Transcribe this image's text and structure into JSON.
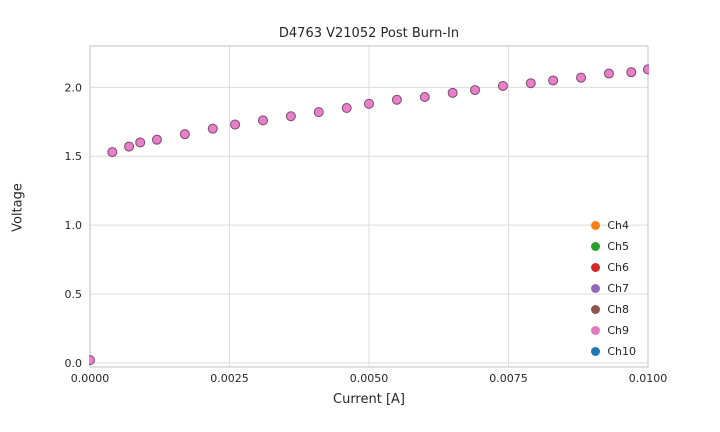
{
  "chart_data": {
    "type": "scatter",
    "title": "D4763 V21052 Post Burn-In",
    "xlabel": "Current [A]",
    "ylabel": "Voltage",
    "xlim": [
      0,
      0.01
    ],
    "ylim": [
      -0.03,
      2.3
    ],
    "grid": true,
    "legend_position": "lower right",
    "x_ticks": [
      0,
      0.0025,
      0.005,
      0.0075,
      0.01
    ],
    "x_tick_labels": [
      "0.0000",
      "0.0025",
      "0.0050",
      "0.0075",
      "0.0100"
    ],
    "y_ticks": [
      0.0,
      0.5,
      1.0,
      1.5,
      2.0
    ],
    "y_tick_labels": [
      "0.0",
      "0.5",
      "1.0",
      "1.5",
      "2.0"
    ],
    "marker": {
      "fill": "#e87fc9",
      "stroke": "#7a4a6e",
      "radius": 4.5,
      "stroke_width": 1
    },
    "points": {
      "x": [
        0.0,
        0.0004,
        0.0007,
        0.0009,
        0.0012,
        0.0017,
        0.0022,
        0.0026,
        0.0031,
        0.0036,
        0.0041,
        0.0046,
        0.005,
        0.0055,
        0.006,
        0.0065,
        0.0069,
        0.0074,
        0.0079,
        0.0083,
        0.0088,
        0.0093,
        0.0097,
        0.01
      ],
      "y": [
        0.02,
        1.53,
        1.57,
        1.6,
        1.62,
        1.66,
        1.7,
        1.73,
        1.76,
        1.79,
        1.82,
        1.85,
        1.88,
        1.91,
        1.93,
        1.96,
        1.98,
        2.01,
        2.03,
        2.05,
        2.07,
        2.1,
        2.11,
        2.13
      ]
    },
    "series": [
      {
        "name": "Ch4",
        "color": "#ff7f0e"
      },
      {
        "name": "Ch5",
        "color": "#2ca02c"
      },
      {
        "name": "Ch6",
        "color": "#d62728"
      },
      {
        "name": "Ch7",
        "color": "#9467bd"
      },
      {
        "name": "Ch8",
        "color": "#8c564b"
      },
      {
        "name": "Ch9",
        "color": "#e377c2"
      },
      {
        "name": "Ch10",
        "color": "#1f77b4"
      }
    ],
    "colors": {
      "grid": "#dcdcdc",
      "plot_border": "#cccccc",
      "text": "#262626",
      "background": "#ffffff"
    }
  }
}
